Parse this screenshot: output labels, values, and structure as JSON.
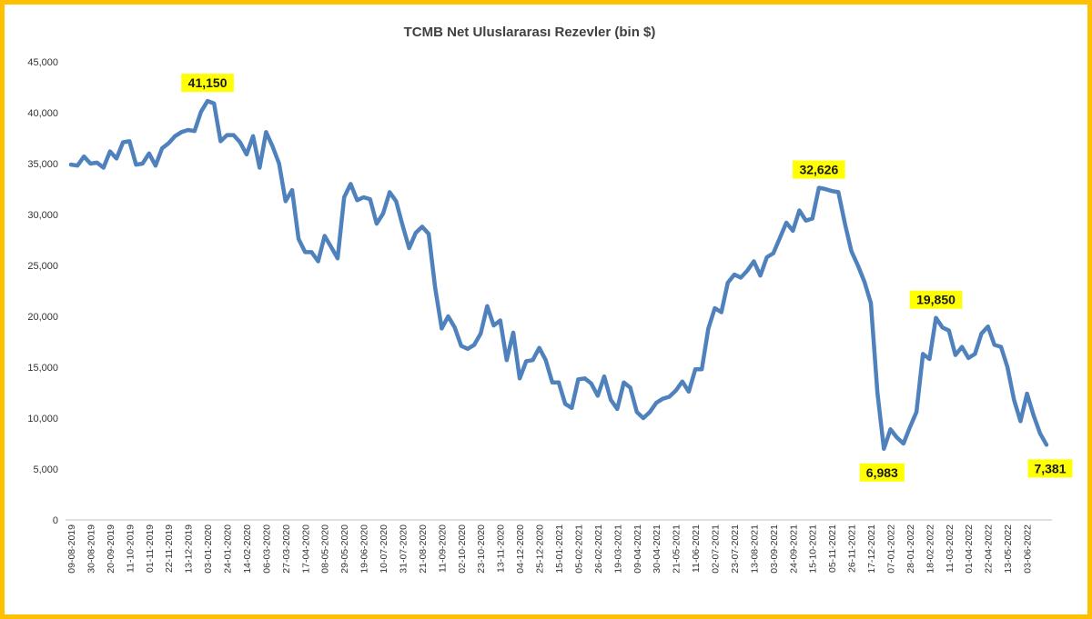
{
  "chart_data": {
    "type": "line",
    "title": "TCMB Net Uluslararası Rezevler (bin $)",
    "xlabel": "",
    "ylabel": "",
    "ylim": [
      0,
      45000
    ],
    "y_ticks": [
      "0",
      "5,000",
      "10,000",
      "15,000",
      "20,000",
      "25,000",
      "30,000",
      "35,000",
      "40,000",
      "45,000"
    ],
    "x_tick_labels": [
      "09-08-2019",
      "30-08-2019",
      "20-09-2019",
      "11-10-2019",
      "01-11-2019",
      "22-11-2019",
      "13-12-2019",
      "03-01-2020",
      "24-01-2020",
      "14-02-2020",
      "06-03-2020",
      "27-03-2020",
      "17-04-2020",
      "08-05-2020",
      "29-05-2020",
      "19-06-2020",
      "10-07-2020",
      "31-07-2020",
      "21-08-2020",
      "11-09-2020",
      "02-10-2020",
      "23-10-2020",
      "13-11-2020",
      "04-12-2020",
      "25-12-2020",
      "15-01-2021",
      "05-02-2021",
      "26-02-2021",
      "19-03-2021",
      "09-04-2021",
      "30-04-2021",
      "21-05-2021",
      "11-06-2021",
      "02-07-2021",
      "23-07-2021",
      "13-08-2021",
      "03-09-2021",
      "24-09-2021",
      "15-10-2021",
      "05-11-2021",
      "26-11-2021",
      "17-12-2021",
      "07-01-2022",
      "28-01-2022",
      "18-02-2022",
      "11-03-2022",
      "01-04-2022",
      "22-04-2022",
      "13-05-2022",
      "03-06-2022"
    ],
    "grid": false,
    "legend": "none",
    "line_color": "#4F81BD",
    "series": [
      {
        "values": [
          34900,
          34800,
          35700,
          35000,
          35100,
          34600,
          36200,
          35500,
          37100,
          37200,
          34900,
          35000,
          36000,
          34800,
          36500,
          37000,
          37700,
          38100,
          38300,
          38200,
          40100,
          41150,
          40900,
          37200,
          37800,
          37800,
          37100,
          35900,
          37700,
          34600,
          38100,
          36700,
          35000,
          31300,
          32400,
          27600,
          26300,
          26300,
          25400,
          27900,
          26800,
          25700,
          31700,
          33000,
          31400,
          31700,
          31500,
          29100,
          30100,
          32200,
          31300,
          28900,
          26700,
          28200,
          28800,
          28100,
          22800,
          18800,
          20000,
          18900,
          17100,
          16800,
          17200,
          18300,
          21000,
          19100,
          19600,
          15700,
          18400,
          13900,
          15600,
          15700,
          16900,
          15700,
          13500,
          13500,
          11400,
          11000,
          13800,
          13900,
          13400,
          12200,
          14100,
          11800,
          10900,
          13500,
          13000,
          10600,
          10000,
          10600,
          11500,
          11900,
          12100,
          12700,
          13600,
          12600,
          14800,
          14800,
          18800,
          20800,
          20400,
          23300,
          24100,
          23800,
          24500,
          25400,
          24000,
          25800,
          26200,
          27700,
          29200,
          28400,
          30400,
          29400,
          29600,
          32626,
          32500,
          32300,
          32200,
          29100,
          26400,
          25000,
          23400,
          21300,
          12500,
          6983,
          8900,
          8100,
          7500,
          9100,
          10600,
          16300,
          15800,
          19850,
          18900,
          18600,
          16200,
          17000,
          15900,
          16300,
          18300,
          19000,
          17200,
          17000,
          15000,
          11800,
          9700,
          12400,
          10300,
          8500,
          7381
        ]
      }
    ],
    "annotations": [
      {
        "label": "41,150",
        "index": 21
      },
      {
        "label": "32,626",
        "index": 115
      },
      {
        "label": "6,983",
        "index": 125
      },
      {
        "label": "19,850",
        "index": 133
      },
      {
        "label": "7,381",
        "index": 150
      }
    ]
  }
}
